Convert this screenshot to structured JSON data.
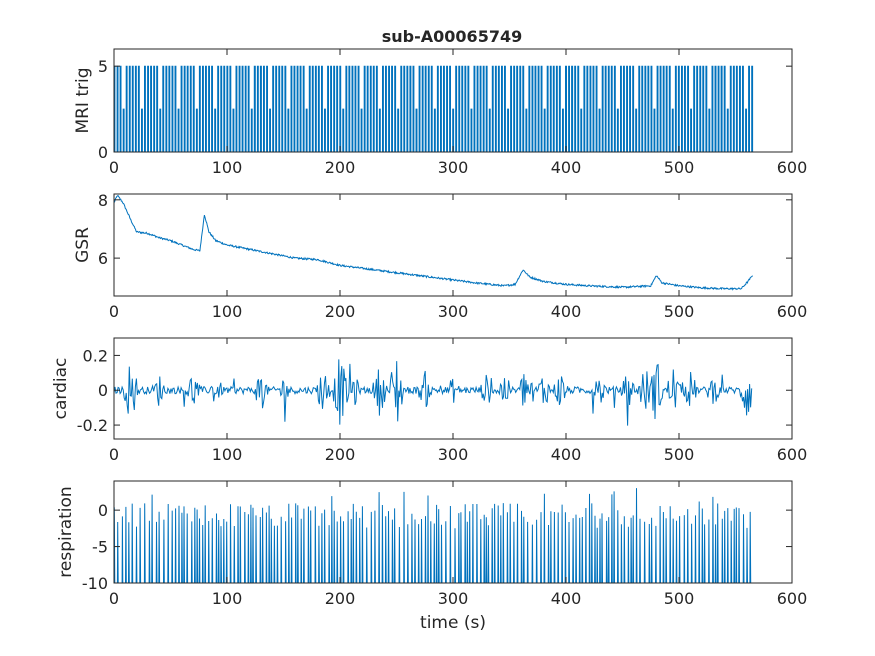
{
  "figure": {
    "title": "sub-A00065749"
  },
  "chart_data": [
    {
      "type": "line",
      "panel": "mri-trig",
      "title": "sub-A00065749",
      "xlabel": "",
      "ylabel": "MRI trig",
      "xlim": [
        0,
        600
      ],
      "ylim": [
        0,
        6
      ],
      "xticks": [
        0,
        100,
        200,
        300,
        400,
        500,
        600
      ],
      "yticks": [
        0,
        5
      ],
      "grid": false,
      "signal": "square pulse train between 0 and 5, with some pulses reaching 2.5, spanning 0–565 s"
    },
    {
      "type": "line",
      "panel": "gsr",
      "xlabel": "",
      "ylabel": "GSR",
      "xlim": [
        0,
        600
      ],
      "ylim": [
        4.7,
        8.2
      ],
      "xticks": [
        0,
        100,
        200,
        300,
        400,
        500,
        600
      ],
      "yticks": [
        6,
        8
      ],
      "grid": false,
      "points": [
        [
          0,
          7.9
        ],
        [
          3,
          8.15
        ],
        [
          8,
          7.9
        ],
        [
          15,
          7.3
        ],
        [
          20,
          6.9
        ],
        [
          30,
          6.85
        ],
        [
          40,
          6.7
        ],
        [
          50,
          6.6
        ],
        [
          60,
          6.45
        ],
        [
          70,
          6.3
        ],
        [
          76,
          6.25
        ],
        [
          80,
          7.5
        ],
        [
          84,
          6.9
        ],
        [
          90,
          6.6
        ],
        [
          100,
          6.45
        ],
        [
          120,
          6.3
        ],
        [
          140,
          6.15
        ],
        [
          160,
          6.0
        ],
        [
          180,
          5.95
        ],
        [
          200,
          5.75
        ],
        [
          220,
          5.65
        ],
        [
          250,
          5.5
        ],
        [
          280,
          5.35
        ],
        [
          300,
          5.25
        ],
        [
          320,
          5.15
        ],
        [
          345,
          5.05
        ],
        [
          355,
          5.1
        ],
        [
          362,
          5.6
        ],
        [
          368,
          5.35
        ],
        [
          380,
          5.2
        ],
        [
          400,
          5.1
        ],
        [
          420,
          5.05
        ],
        [
          450,
          5.0
        ],
        [
          475,
          5.05
        ],
        [
          480,
          5.4
        ],
        [
          485,
          5.15
        ],
        [
          500,
          5.05
        ],
        [
          520,
          4.98
        ],
        [
          540,
          4.95
        ],
        [
          555,
          4.95
        ],
        [
          560,
          5.15
        ],
        [
          565,
          5.4
        ]
      ]
    },
    {
      "type": "line",
      "panel": "cardiac",
      "xlabel": "",
      "ylabel": "cardiac",
      "xlim": [
        0,
        600
      ],
      "ylim": [
        -0.28,
        0.3
      ],
      "xticks": [
        0,
        100,
        200,
        300,
        400,
        500,
        600
      ],
      "yticks": [
        -0.2,
        0,
        0.2
      ],
      "grid": false,
      "signal": "noisy oscillation around 0 with bursts reaching about ±0.25, spanning 0–565 s"
    },
    {
      "type": "line",
      "panel": "respiration",
      "xlabel": "time (s)",
      "ylabel": "respiration",
      "xlim": [
        0,
        600
      ],
      "ylim": [
        -10,
        4
      ],
      "xticks": [
        0,
        100,
        200,
        300,
        400,
        500,
        600
      ],
      "yticks": [
        -10,
        -5,
        0
      ],
      "grid": false,
      "signal": "spiky trace with baseline near -10 and peaks mostly between -1 and 3, spanning 0–565 s"
    }
  ]
}
